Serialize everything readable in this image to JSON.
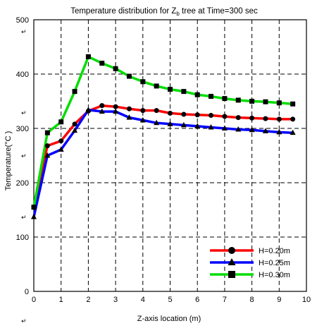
{
  "chart_data": {
    "type": "line",
    "title": "Temperature distribution for Z",
    "title_subscript": "b",
    "title_suffix": " tree at Time=300 sec",
    "xlabel": "Z-axis location (m)",
    "ylabel": "Temperature(°C )",
    "xlim": [
      0,
      10
    ],
    "ylim": [
      0,
      500
    ],
    "x_ticks": [
      0,
      1,
      2,
      3,
      4,
      5,
      6,
      7,
      8,
      9,
      10
    ],
    "y_ticks": [
      0,
      100,
      200,
      300,
      400,
      500
    ],
    "grid": "dashed",
    "legend_position": "bottom-right",
    "series": [
      {
        "name": "H=0.20m",
        "color": "#ff0000",
        "marker": "circle",
        "x": [
          0,
          0.5,
          1,
          1.5,
          2,
          2.5,
          3,
          3.5,
          4,
          4.5,
          5,
          5.5,
          6,
          6.5,
          7,
          7.5,
          8,
          8.5,
          9,
          9.5
        ],
        "values": [
          155,
          268,
          277,
          308,
          332,
          342,
          340,
          336,
          333,
          333,
          328,
          326,
          325,
          324,
          322,
          320,
          319,
          318,
          317,
          317
        ]
      },
      {
        "name": "H=0.25m",
        "color": "#0000ff",
        "marker": "triangle",
        "x": [
          0,
          0.5,
          1,
          1.5,
          2,
          2.5,
          3,
          3.5,
          4,
          4.5,
          5,
          5.5,
          6,
          6.5,
          7,
          7.5,
          8,
          8.5,
          9,
          9.5
        ],
        "values": [
          137,
          250,
          261,
          296,
          334,
          331,
          331,
          320,
          315,
          310,
          308,
          306,
          304,
          302,
          300,
          298,
          297,
          295,
          293,
          292
        ]
      },
      {
        "name": "H=0.30m",
        "color": "#00dd00",
        "marker": "square",
        "x": [
          0,
          0.5,
          1,
          1.5,
          2,
          2.5,
          3,
          3.5,
          4,
          4.5,
          5,
          5.5,
          6,
          6.5,
          7,
          7.5,
          8,
          8.5,
          9,
          9.5
        ],
        "values": [
          155,
          292,
          312,
          368,
          432,
          420,
          410,
          396,
          386,
          378,
          372,
          368,
          362,
          359,
          355,
          352,
          350,
          349,
          347,
          345
        ]
      }
    ],
    "stray_glyph": "↵"
  }
}
